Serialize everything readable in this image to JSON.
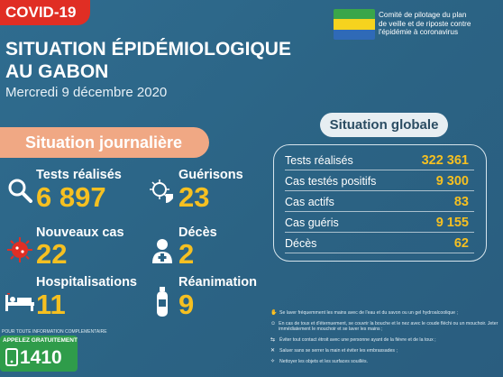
{
  "header": {
    "tag": "COVID-19",
    "title_line1": "SITUATION ÉPIDÉMIOLOGIQUE",
    "title_line2": "AU GABON",
    "date": "Mercredi 9 décembre 2020",
    "committee_line1": "Comité de pilotage du plan",
    "committee_line2": "de veille et de riposte contre",
    "committee_line3": "l'épidémie à coronavirus"
  },
  "daily": {
    "heading": "Situation journalière",
    "tests_label": "Tests réalisés",
    "tests_value": "6 897",
    "recoveries_label": "Guérisons",
    "recoveries_value": "23",
    "new_cases_label": "Nouveaux cas",
    "new_cases_value": "22",
    "deaths_label": "Décès",
    "deaths_value": "2",
    "hosp_label": "Hospitalisations",
    "hosp_value": "11",
    "icu_label": "Réanimation",
    "icu_value": "9"
  },
  "global": {
    "heading": "Situation globale",
    "rows": [
      {
        "label": "Tests réalisés",
        "value": "322 361"
      },
      {
        "label": "Cas testés positifs",
        "value": "9 300"
      },
      {
        "label": "Cas actifs",
        "value": "83"
      },
      {
        "label": "Cas guéris",
        "value": "9 155"
      },
      {
        "label": "Décès",
        "value": "62"
      }
    ]
  },
  "advice": [
    "Se laver fréquemment les mains avec de l'eau et du savon ou un gel hydroalcoolique ;",
    "En cas de toux et d'éternuement, se couvrir la bouche et le nez avec le coude fléchi ou un mouchoir. Jeter immédiatement le mouchoir et se laver les mains ;",
    "Éviter tout contact étroit avec une personne ayant de la fièvre et de la toux ;",
    "Saluer sans se serrer la main et éviter les embrassades ;",
    "Nettoyer les objets et les surfaces souillés."
  ],
  "call": {
    "info": "POUR TOUTE INFORMATION COMPLEMENTAIRE",
    "label": "APPELEZ GRATUITEMENT",
    "number": "1410"
  },
  "colors": {
    "accent_yellow": "#f6c021",
    "covid_red": "#e02e24",
    "daily_pill": "#f0a884",
    "call_green": "#2f9c4a"
  }
}
